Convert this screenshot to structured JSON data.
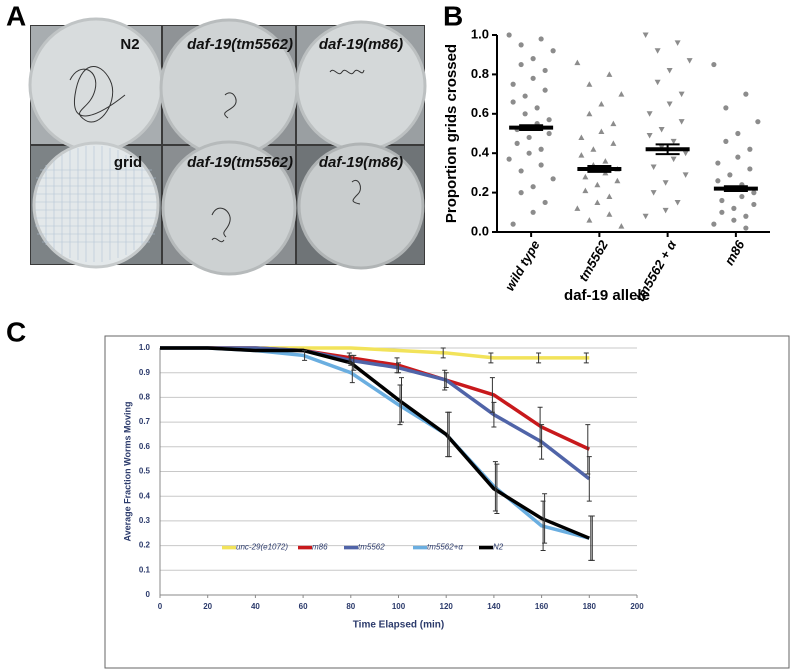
{
  "photos": {
    "panel_label": "A",
    "captions": [
      "N2",
      "daf-19(tm5562)",
      "daf-19(m86)",
      "grid",
      "daf-19(tm5562)",
      "daf-19(m86)"
    ]
  },
  "chart_data": [
    {
      "type": "strip",
      "panel_label": "B",
      "ylabel": "Proportion grids crossed",
      "xlabel": "daf-19 allele",
      "categories": [
        "wild type",
        "tm5562",
        "tm5562 + α",
        "m86"
      ],
      "values": [
        0.53,
        0.32,
        0.42,
        0.22
      ],
      "errors": [
        0.012,
        0.015,
        0.025,
        0.012
      ],
      "points": [
        [
          1.0,
          0.98,
          0.95,
          0.92,
          0.88,
          0.85,
          0.82,
          0.78,
          0.75,
          0.72,
          0.69,
          0.66,
          0.63,
          0.6,
          0.57,
          0.55,
          0.52,
          0.5,
          0.48,
          0.45,
          0.42,
          0.4,
          0.37,
          0.34,
          0.31,
          0.27,
          0.23,
          0.2,
          0.15,
          0.1,
          0.04
        ],
        [
          0.86,
          0.8,
          0.75,
          0.7,
          0.65,
          0.6,
          0.55,
          0.51,
          0.48,
          0.45,
          0.42,
          0.39,
          0.36,
          0.34,
          0.32,
          0.3,
          0.28,
          0.26,
          0.24,
          0.21,
          0.18,
          0.15,
          0.12,
          0.09,
          0.06,
          0.03
        ],
        [
          1.0,
          0.96,
          0.92,
          0.87,
          0.82,
          0.76,
          0.7,
          0.65,
          0.6,
          0.56,
          0.52,
          0.49,
          0.46,
          0.43,
          0.4,
          0.37,
          0.33,
          0.29,
          0.25,
          0.2,
          0.15,
          0.11,
          0.08
        ],
        [
          0.85,
          0.7,
          0.63,
          0.56,
          0.5,
          0.46,
          0.42,
          0.38,
          0.35,
          0.32,
          0.29,
          0.26,
          0.24,
          0.22,
          0.2,
          0.18,
          0.16,
          0.14,
          0.12,
          0.1,
          0.08,
          0.06,
          0.04,
          0.02
        ]
      ],
      "markers": [
        "circle",
        "triangle",
        "triangle-down",
        "circle"
      ],
      "color": "#8c8c8c",
      "ylim": [
        0,
        1
      ],
      "yticks": [
        {
          "value": 0,
          "label": "0.0"
        },
        0.2,
        0.4,
        0.6,
        0.8,
        {
          "value": 1,
          "label": "1.0"
        }
      ]
    },
    {
      "type": "line",
      "panel_label": "C",
      "xlabel": "Time Elapsed (min)",
      "ylabel": "Average Fraction  Worms Moving",
      "x": [
        0,
        20,
        40,
        60,
        80,
        100,
        120,
        140,
        160,
        180
      ],
      "series": [
        {
          "name": "unc-29(e1072)",
          "color": "#f2e35a",
          "values": [
            1,
            1,
            1,
            1,
            1,
            0.99,
            0.98,
            0.96,
            0.96,
            0.96
          ],
          "errors": [
            null,
            null,
            null,
            null,
            null,
            null,
            0.02,
            0.02,
            0.02,
            0.02
          ]
        },
        {
          "name": "m86",
          "color": "#c8191c",
          "values": [
            1,
            1,
            1,
            0.99,
            0.96,
            0.93,
            0.87,
            0.81,
            0.68,
            0.59
          ],
          "errors": [
            null,
            null,
            null,
            null,
            0.02,
            0.03,
            0.04,
            0.07,
            0.08,
            0.1
          ]
        },
        {
          "name": "tm5562",
          "color": "#5064a8",
          "values": [
            1,
            1,
            1,
            0.99,
            0.95,
            0.92,
            0.87,
            0.73,
            0.62,
            0.47
          ],
          "errors": [
            null,
            null,
            null,
            null,
            0.02,
            0.02,
            0.03,
            0.05,
            0.07,
            0.09
          ]
        },
        {
          "name": "tm5562+α",
          "color": "#6aaee0",
          "values": [
            1,
            1,
            0.99,
            0.97,
            0.9,
            0.77,
            0.65,
            0.44,
            0.28,
            0.23
          ],
          "errors": [
            null,
            null,
            null,
            0.02,
            0.04,
            0.08,
            0.09,
            0.1,
            0.1,
            0.09
          ]
        },
        {
          "name": "N2",
          "color": "#000000",
          "values": [
            1,
            1,
            0.99,
            0.99,
            0.94,
            0.79,
            0.65,
            0.43,
            0.31,
            0.23
          ],
          "errors": [
            null,
            null,
            null,
            null,
            0.03,
            0.09,
            0.09,
            0.1,
            0.1,
            0.09
          ]
        }
      ],
      "xlim": [
        0,
        200
      ],
      "xticks": [
        0,
        20,
        40,
        60,
        80,
        100,
        120,
        140,
        160,
        180,
        200
      ],
      "ylim": [
        0,
        1
      ],
      "yticks": [
        0,
        0.1,
        0.2,
        0.3,
        0.4,
        0.5,
        0.6,
        0.7,
        0.8,
        0.9,
        {
          "value": 1,
          "label": "1.0"
        }
      ],
      "grid": true,
      "legend": "lower center"
    }
  ]
}
